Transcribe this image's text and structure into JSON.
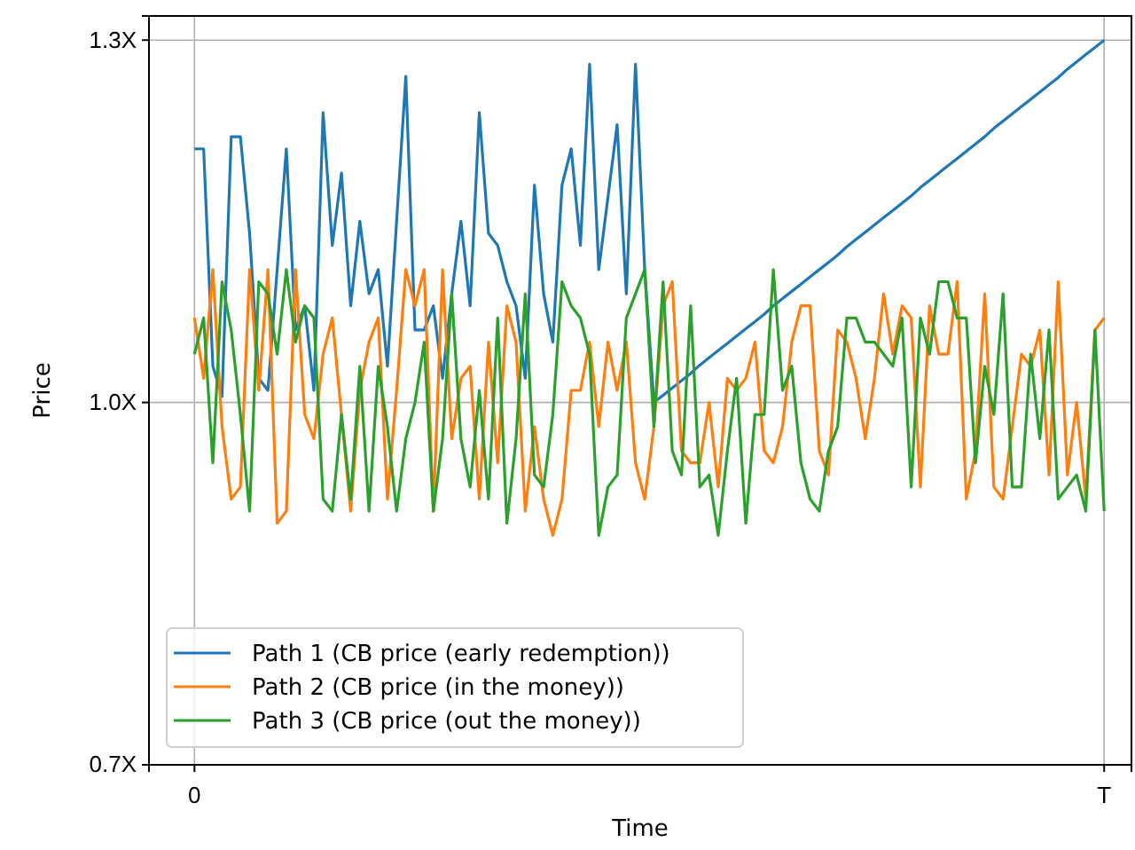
{
  "chart_data": {
    "type": "line",
    "xlabel": "Time",
    "ylabel": "Price",
    "categories": [
      "0",
      null,
      null,
      null,
      null,
      null,
      null,
      null,
      null,
      null,
      null,
      null,
      null,
      null,
      null,
      null,
      null,
      null,
      null,
      null,
      null,
      null,
      null,
      null,
      null,
      null,
      null,
      null,
      null,
      null,
      null,
      null,
      null,
      null,
      null,
      null,
      null,
      null,
      null,
      null,
      null,
      null,
      null,
      null,
      null,
      null,
      null,
      null,
      null,
      null,
      null,
      null,
      null,
      null,
      null,
      null,
      null,
      null,
      null,
      null,
      null,
      null,
      null,
      null,
      null,
      null,
      null,
      null,
      null,
      null,
      null,
      null,
      null,
      null,
      null,
      null,
      null,
      null,
      null,
      null,
      null,
      null,
      null,
      null,
      null,
      null,
      null,
      null,
      null,
      null,
      null,
      null,
      null,
      null,
      null,
      null,
      null,
      null,
      null,
      "T"
    ],
    "ylim": [
      0.7,
      1.32
    ],
    "yticks": [
      {
        "value": 0.7,
        "label": "0.7X"
      },
      {
        "value": 1.0,
        "label": "1.0X"
      },
      {
        "value": 1.3,
        "label": "1.3X"
      }
    ],
    "grid": true,
    "legend": "bottom left",
    "line_style": "solid",
    "marker": "none",
    "series": [
      {
        "name": "Path 1 (CB price (early redemption))",
        "color": "#1f77b4",
        "values": [
          1.21,
          1.21,
          1.03,
          1.005,
          1.22,
          1.22,
          1.14,
          1.02,
          1.01,
          1.11,
          1.21,
          1.06,
          1.08,
          1.01,
          1.24,
          1.13,
          1.19,
          1.08,
          1.15,
          1.09,
          1.11,
          1.03,
          1.15,
          1.27,
          1.06,
          1.06,
          1.08,
          1.02,
          1.09,
          1.15,
          1.08,
          1.24,
          1.14,
          1.13,
          1.1,
          1.08,
          1.02,
          1.18,
          1.09,
          1.05,
          1.18,
          1.21,
          1.13,
          1.28,
          1.11,
          1.17,
          1.23,
          1.09,
          1.28,
          1.11,
          1.0,
          1.006,
          1.012,
          1.018,
          1.024,
          1.031,
          1.037,
          1.043,
          1.049,
          1.055,
          1.061,
          1.067,
          1.073,
          1.08,
          1.086,
          1.092,
          1.098,
          1.104,
          1.11,
          1.116,
          1.122,
          1.129,
          1.135,
          1.141,
          1.147,
          1.153,
          1.159,
          1.165,
          1.171,
          1.178,
          1.184,
          1.19,
          1.196,
          1.202,
          1.208,
          1.214,
          1.22,
          1.227,
          1.233,
          1.239,
          1.245,
          1.251,
          1.257,
          1.263,
          1.269,
          1.276,
          1.282,
          1.288,
          1.294,
          1.3
        ]
      },
      {
        "name": "Path 2 (CB price (in the money))",
        "color": "#ff7f0e",
        "values": [
          1.07,
          1.02,
          1.11,
          0.98,
          0.92,
          0.93,
          1.11,
          1.01,
          1.11,
          0.9,
          0.91,
          1.11,
          0.99,
          0.97,
          1.04,
          1.07,
          0.99,
          0.91,
          1.01,
          1.05,
          1.07,
          0.92,
          1.01,
          1.11,
          1.08,
          1.11,
          0.91,
          1.11,
          0.97,
          1.02,
          1.03,
          0.92,
          1.05,
          0.95,
          1.08,
          1.05,
          0.91,
          0.98,
          0.92,
          0.89,
          0.92,
          1.01,
          1.01,
          1.05,
          0.98,
          1.05,
          1.01,
          1.05,
          0.95,
          0.92,
          0.98,
          1.08,
          1.1,
          0.96,
          0.95,
          0.95,
          1.0,
          0.93,
          1.02,
          1.01,
          1.02,
          1.05,
          0.96,
          0.95,
          0.98,
          1.05,
          1.08,
          1.08,
          0.96,
          0.94,
          1.06,
          1.05,
          1.02,
          0.97,
          1.02,
          1.09,
          1.04,
          1.08,
          1.07,
          0.93,
          1.08,
          1.04,
          1.04,
          1.1,
          0.92,
          0.96,
          1.09,
          0.93,
          0.92,
          0.98,
          1.04,
          1.03,
          1.06,
          0.94,
          1.1,
          0.94,
          1.0,
          0.92,
          1.06,
          1.07
        ]
      },
      {
        "name": "Path 3 (CB price (out the money))",
        "color": "#2ca02c",
        "values": [
          1.04,
          1.07,
          0.95,
          1.1,
          1.06,
          0.99,
          0.91,
          1.1,
          1.09,
          1.04,
          1.11,
          1.05,
          1.08,
          1.07,
          0.92,
          0.91,
          0.99,
          0.92,
          1.03,
          0.91,
          1.03,
          0.98,
          0.91,
          0.97,
          1.0,
          1.05,
          0.91,
          0.97,
          1.09,
          0.97,
          0.93,
          1.01,
          0.92,
          1.07,
          0.9,
          0.97,
          1.09,
          0.94,
          0.93,
          0.99,
          1.1,
          1.08,
          1.07,
          1.04,
          0.89,
          0.93,
          0.94,
          1.07,
          1.09,
          1.11,
          0.98,
          1.1,
          0.96,
          0.94,
          1.08,
          0.93,
          0.94,
          0.89,
          0.96,
          1.02,
          0.9,
          0.99,
          0.99,
          1.11,
          1.01,
          1.03,
          0.95,
          0.92,
          0.91,
          0.96,
          0.98,
          1.07,
          1.07,
          1.05,
          1.05,
          1.04,
          1.03,
          1.07,
          0.93,
          1.07,
          1.04,
          1.1,
          1.1,
          1.07,
          1.07,
          0.95,
          1.03,
          0.99,
          1.09,
          0.93,
          0.93,
          1.04,
          0.97,
          1.06,
          0.92,
          0.93,
          0.94,
          0.91,
          1.06,
          0.91
        ]
      }
    ]
  }
}
